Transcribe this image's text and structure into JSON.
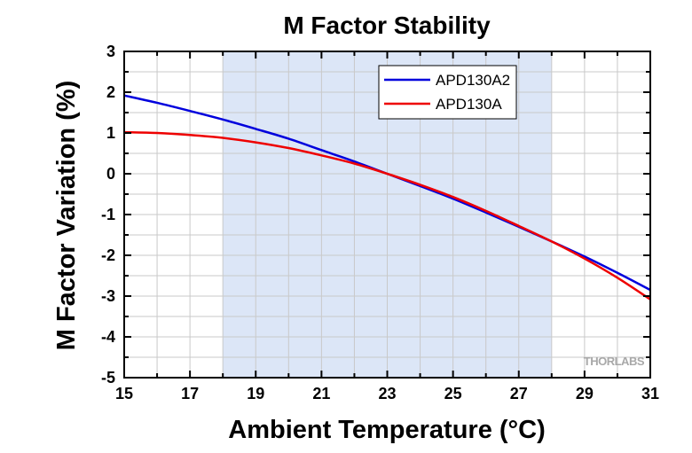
{
  "chart_data": {
    "type": "line",
    "title": "M Factor Stability",
    "xlabel": "Ambient Temperature (°C)",
    "ylabel": "M Factor Variation (%)",
    "xlim": [
      15,
      31
    ],
    "ylim": [
      -5,
      3
    ],
    "xticks": [
      15,
      17,
      19,
      21,
      23,
      25,
      27,
      29,
      31
    ],
    "yticks": [
      3,
      2,
      1,
      0,
      -1,
      -2,
      -3,
      -4,
      -5
    ],
    "grid": true,
    "shaded_region": {
      "x_start": 18,
      "x_end": 28,
      "color": "#dce6f7"
    },
    "legend_position": "top-right",
    "watermark": "THORLABS",
    "series": [
      {
        "name": "APD130A2",
        "color": "#0000dd",
        "x": [
          15,
          16,
          17,
          18,
          19,
          20,
          21,
          22,
          23,
          24,
          25,
          26,
          27,
          28,
          29,
          30,
          31
        ],
        "y": [
          1.92,
          1.74,
          1.54,
          1.33,
          1.1,
          0.86,
          0.58,
          0.3,
          0.0,
          -0.3,
          -0.61,
          -0.95,
          -1.3,
          -1.66,
          -2.03,
          -2.43,
          -2.85
        ]
      },
      {
        "name": "APD130A",
        "color": "#ee0000",
        "x": [
          15,
          16,
          17,
          18,
          19,
          20,
          21,
          22,
          23,
          24,
          25,
          26,
          27,
          28,
          29,
          30,
          31
        ],
        "y": [
          1.02,
          1.0,
          0.95,
          0.88,
          0.77,
          0.63,
          0.45,
          0.25,
          0.0,
          -0.27,
          -0.57,
          -0.91,
          -1.28,
          -1.66,
          -2.08,
          -2.55,
          -3.08
        ]
      }
    ]
  }
}
